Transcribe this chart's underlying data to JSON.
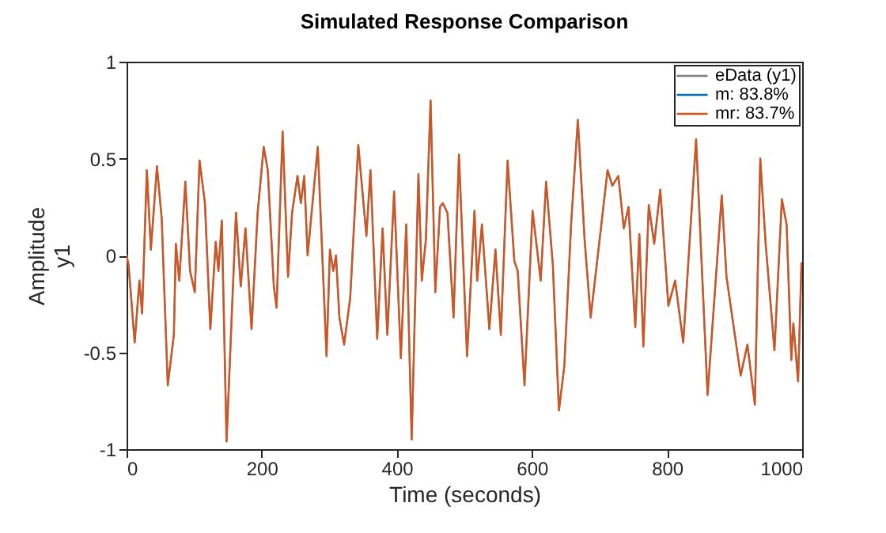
{
  "chart_data": {
    "type": "line",
    "title": "Simulated Response Comparison",
    "xlabel": "Time (seconds)",
    "ylabel": "Amplitude",
    "annotations": [
      "y1"
    ],
    "x": [
      0,
      3,
      12,
      19,
      23,
      30,
      36,
      45,
      52,
      61,
      70,
      73,
      78,
      87,
      94,
      101,
      108,
      116,
      124,
      132,
      136,
      141,
      148,
      162,
      169,
      176,
      185,
      194,
      203,
      209,
      218,
      222,
      231,
      239,
      245,
      253,
      258,
      263,
      268,
      283,
      296,
      301,
      306,
      310,
      315,
      322,
      331,
      343,
      355,
      361,
      371,
      379,
      386,
      396,
      406,
      414,
      422,
      432,
      437,
      443,
      450,
      457,
      464,
      468,
      475,
      484,
      492,
      504,
      515,
      519,
      526,
      537,
      546,
      554,
      564,
      574,
      579,
      589,
      601,
      613,
      621,
      631,
      640,
      648,
      658,
      668,
      678,
      687,
      712,
      719,
      728,
      736,
      743,
      753,
      759,
      765,
      773,
      781,
      790,
      802,
      812,
      824,
      843,
      860,
      881,
      888,
      909,
      919,
      930,
      938,
      946,
      959,
      970,
      977,
      984,
      987,
      994,
      999
    ],
    "series": [
      {
        "name": "eData (y1)",
        "color": "#808080",
        "values": [
          0.0,
          -0.05,
          -0.45,
          -0.13,
          -0.3,
          0.44,
          0.03,
          0.46,
          0.19,
          -0.67,
          -0.41,
          0.06,
          -0.13,
          0.38,
          -0.08,
          -0.19,
          0.49,
          0.27,
          -0.38,
          0.07,
          -0.08,
          0.18,
          -0.96,
          0.22,
          -0.16,
          0.14,
          -0.38,
          0.22,
          0.56,
          0.44,
          -0.16,
          -0.27,
          0.64,
          -0.11,
          0.22,
          0.41,
          0.27,
          0.41,
          0.0,
          0.56,
          -0.52,
          0.03,
          -0.08,
          0.0,
          -0.32,
          -0.46,
          -0.22,
          0.57,
          0.1,
          0.44,
          -0.43,
          0.14,
          -0.41,
          0.33,
          -0.53,
          0.16,
          -0.95,
          0.42,
          -0.13,
          0.08,
          0.8,
          -0.19,
          0.25,
          0.27,
          0.22,
          -0.32,
          0.52,
          -0.52,
          0.23,
          -0.13,
          0.16,
          -0.38,
          0.03,
          -0.41,
          0.49,
          -0.03,
          -0.08,
          -0.67,
          0.23,
          -0.13,
          0.38,
          -0.05,
          -0.8,
          -0.57,
          0.16,
          0.7,
          0.08,
          -0.32,
          0.44,
          0.36,
          0.41,
          0.14,
          0.25,
          -0.37,
          0.11,
          -0.47,
          0.26,
          0.06,
          0.34,
          -0.26,
          -0.13,
          -0.45,
          0.6,
          -0.72,
          0.31,
          -0.11,
          -0.62,
          -0.46,
          -0.77,
          0.5,
          0.06,
          -0.49,
          0.29,
          0.16,
          -0.54,
          -0.35,
          -0.65,
          -0.04
        ]
      },
      {
        "name": "m: 83.8%",
        "color": "#0072bd",
        "values": [
          null,
          null,
          null,
          null,
          null,
          null,
          null,
          null,
          null,
          null,
          null,
          null,
          null,
          null,
          null,
          null,
          null,
          null,
          null,
          null,
          null,
          null,
          null,
          null,
          null,
          null,
          null,
          null,
          null,
          null,
          null,
          null,
          null,
          null,
          null,
          null,
          null,
          null,
          null,
          null,
          null,
          null,
          null,
          null,
          null,
          null,
          null,
          null,
          null,
          null,
          null,
          null,
          null,
          null,
          null,
          null,
          null,
          null,
          null,
          null,
          null,
          null,
          null,
          null,
          null,
          null,
          null,
          null,
          null,
          null,
          null,
          null,
          null,
          null,
          null,
          null,
          null,
          null,
          null,
          null,
          null,
          null,
          null,
          null,
          null,
          null,
          null,
          null,
          null,
          null,
          null,
          null,
          null,
          null,
          null,
          null,
          null,
          null,
          null,
          null,
          null,
          null,
          null,
          null,
          null,
          null,
          null,
          null,
          null,
          null,
          null,
          null,
          null,
          null,
          null,
          null,
          null,
          null
        ]
      },
      {
        "name": "mr: 83.7%",
        "color": "#d95319",
        "values": [
          0.0,
          -0.05,
          -0.45,
          -0.13,
          -0.3,
          0.44,
          0.03,
          0.46,
          0.19,
          -0.67,
          -0.41,
          0.06,
          -0.13,
          0.38,
          -0.08,
          -0.19,
          0.49,
          0.27,
          -0.38,
          0.07,
          -0.08,
          0.18,
          -0.96,
          0.22,
          -0.16,
          0.14,
          -0.38,
          0.22,
          0.56,
          0.44,
          -0.16,
          -0.27,
          0.64,
          -0.11,
          0.22,
          0.41,
          0.27,
          0.41,
          0.0,
          0.56,
          -0.52,
          0.03,
          -0.08,
          0.0,
          -0.32,
          -0.46,
          -0.22,
          0.57,
          0.1,
          0.44,
          -0.43,
          0.14,
          -0.41,
          0.33,
          -0.53,
          0.16,
          -0.95,
          0.42,
          -0.13,
          0.08,
          0.8,
          -0.19,
          0.25,
          0.27,
          0.22,
          -0.32,
          0.52,
          -0.52,
          0.23,
          -0.13,
          0.16,
          -0.38,
          0.03,
          -0.41,
          0.49,
          -0.03,
          -0.08,
          -0.67,
          0.23,
          -0.13,
          0.38,
          -0.05,
          -0.8,
          -0.57,
          0.16,
          0.7,
          0.08,
          -0.32,
          0.44,
          0.36,
          0.41,
          0.14,
          0.25,
          -0.37,
          0.11,
          -0.47,
          0.26,
          0.06,
          0.34,
          -0.26,
          -0.13,
          -0.45,
          0.6,
          -0.72,
          0.31,
          -0.11,
          -0.62,
          -0.46,
          -0.77,
          0.5,
          0.06,
          -0.49,
          0.29,
          0.16,
          -0.54,
          -0.35,
          -0.65,
          -0.04
        ]
      }
    ],
    "xlim": [
      0,
      1000
    ],
    "xticks": [
      0,
      200,
      400,
      600,
      800,
      1000
    ],
    "ylim": [
      -1,
      1
    ],
    "yticks": [
      -1,
      -0.5,
      0,
      0.5,
      1
    ],
    "legend": "top right"
  }
}
